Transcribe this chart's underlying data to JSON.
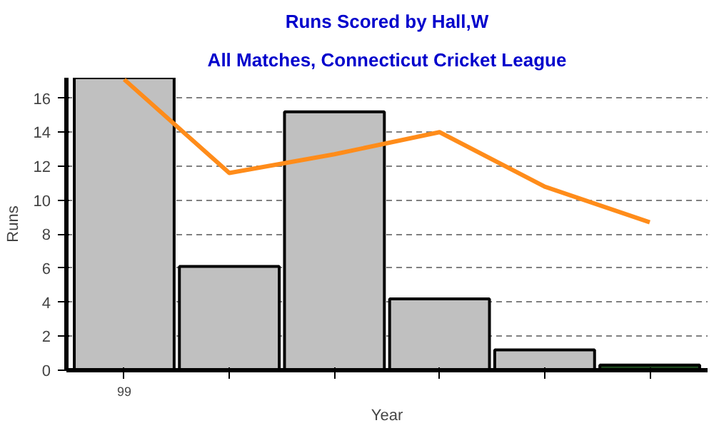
{
  "chart_data": {
    "type": "bar",
    "title": "Runs Scored by Hall,W",
    "subtitle": "All Matches, Connecticut Cricket League",
    "xlabel": "Year",
    "ylabel": "Runs",
    "categories": [
      "99",
      null,
      null,
      null,
      null,
      null
    ],
    "series": [
      {
        "colors": [
          "#c0c0c0",
          "#c0c0c0",
          "#c0c0c0",
          "#c0c0c0",
          "#c0c0c0",
          "#1e4a1e"
        ],
        "values": [
          17.2,
          6.1,
          15.2,
          4.2,
          1.2,
          0.3
        ]
      },
      {
        "type": "line",
        "color": "#ff8c1a",
        "values": [
          17.1,
          11.6,
          12.7,
          14.0,
          10.8,
          8.7
        ]
      }
    ],
    "ylim": [
      0,
      17.2
    ],
    "yticks": [
      0,
      2,
      4,
      6,
      8,
      10,
      12,
      14,
      16
    ],
    "grid": "y"
  }
}
